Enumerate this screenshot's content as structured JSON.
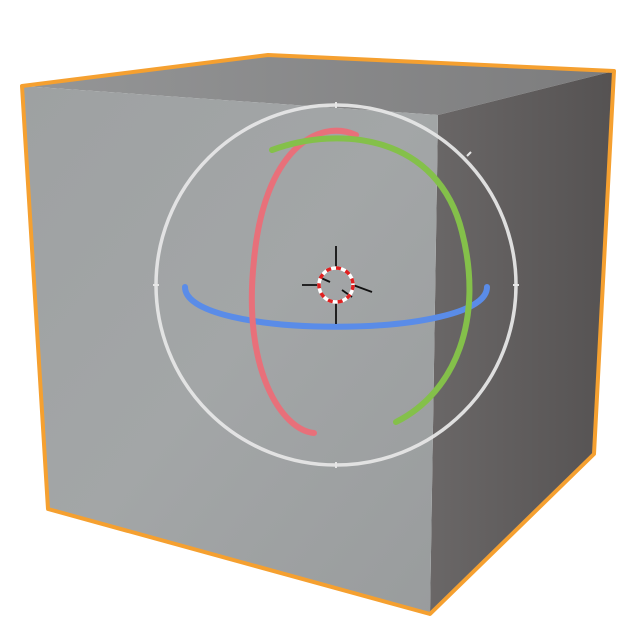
{
  "scene": {
    "object": {
      "icon": "cube-icon",
      "selected": true
    },
    "gizmo": {
      "mode": "rotate",
      "icon": "rotate-gizmo-icon",
      "axes": [
        "x",
        "y",
        "z"
      ]
    },
    "cursor": {
      "icon": "3d-cursor-icon"
    }
  },
  "colors": {
    "background": "#ffffff",
    "selection_outline": "#f5a030",
    "face_front": "#a2a5a6",
    "face_top": "#8a8b8c",
    "face_right": "#5e5b5b",
    "axis_x": "#e8707a",
    "axis_y": "#84c04a",
    "axis_z": "#5a8ce8",
    "trackball": "#e6e6e6",
    "cursor_red": "#e02020",
    "cursor_white": "#ffffff",
    "cursor_crosshair": "#111111"
  }
}
